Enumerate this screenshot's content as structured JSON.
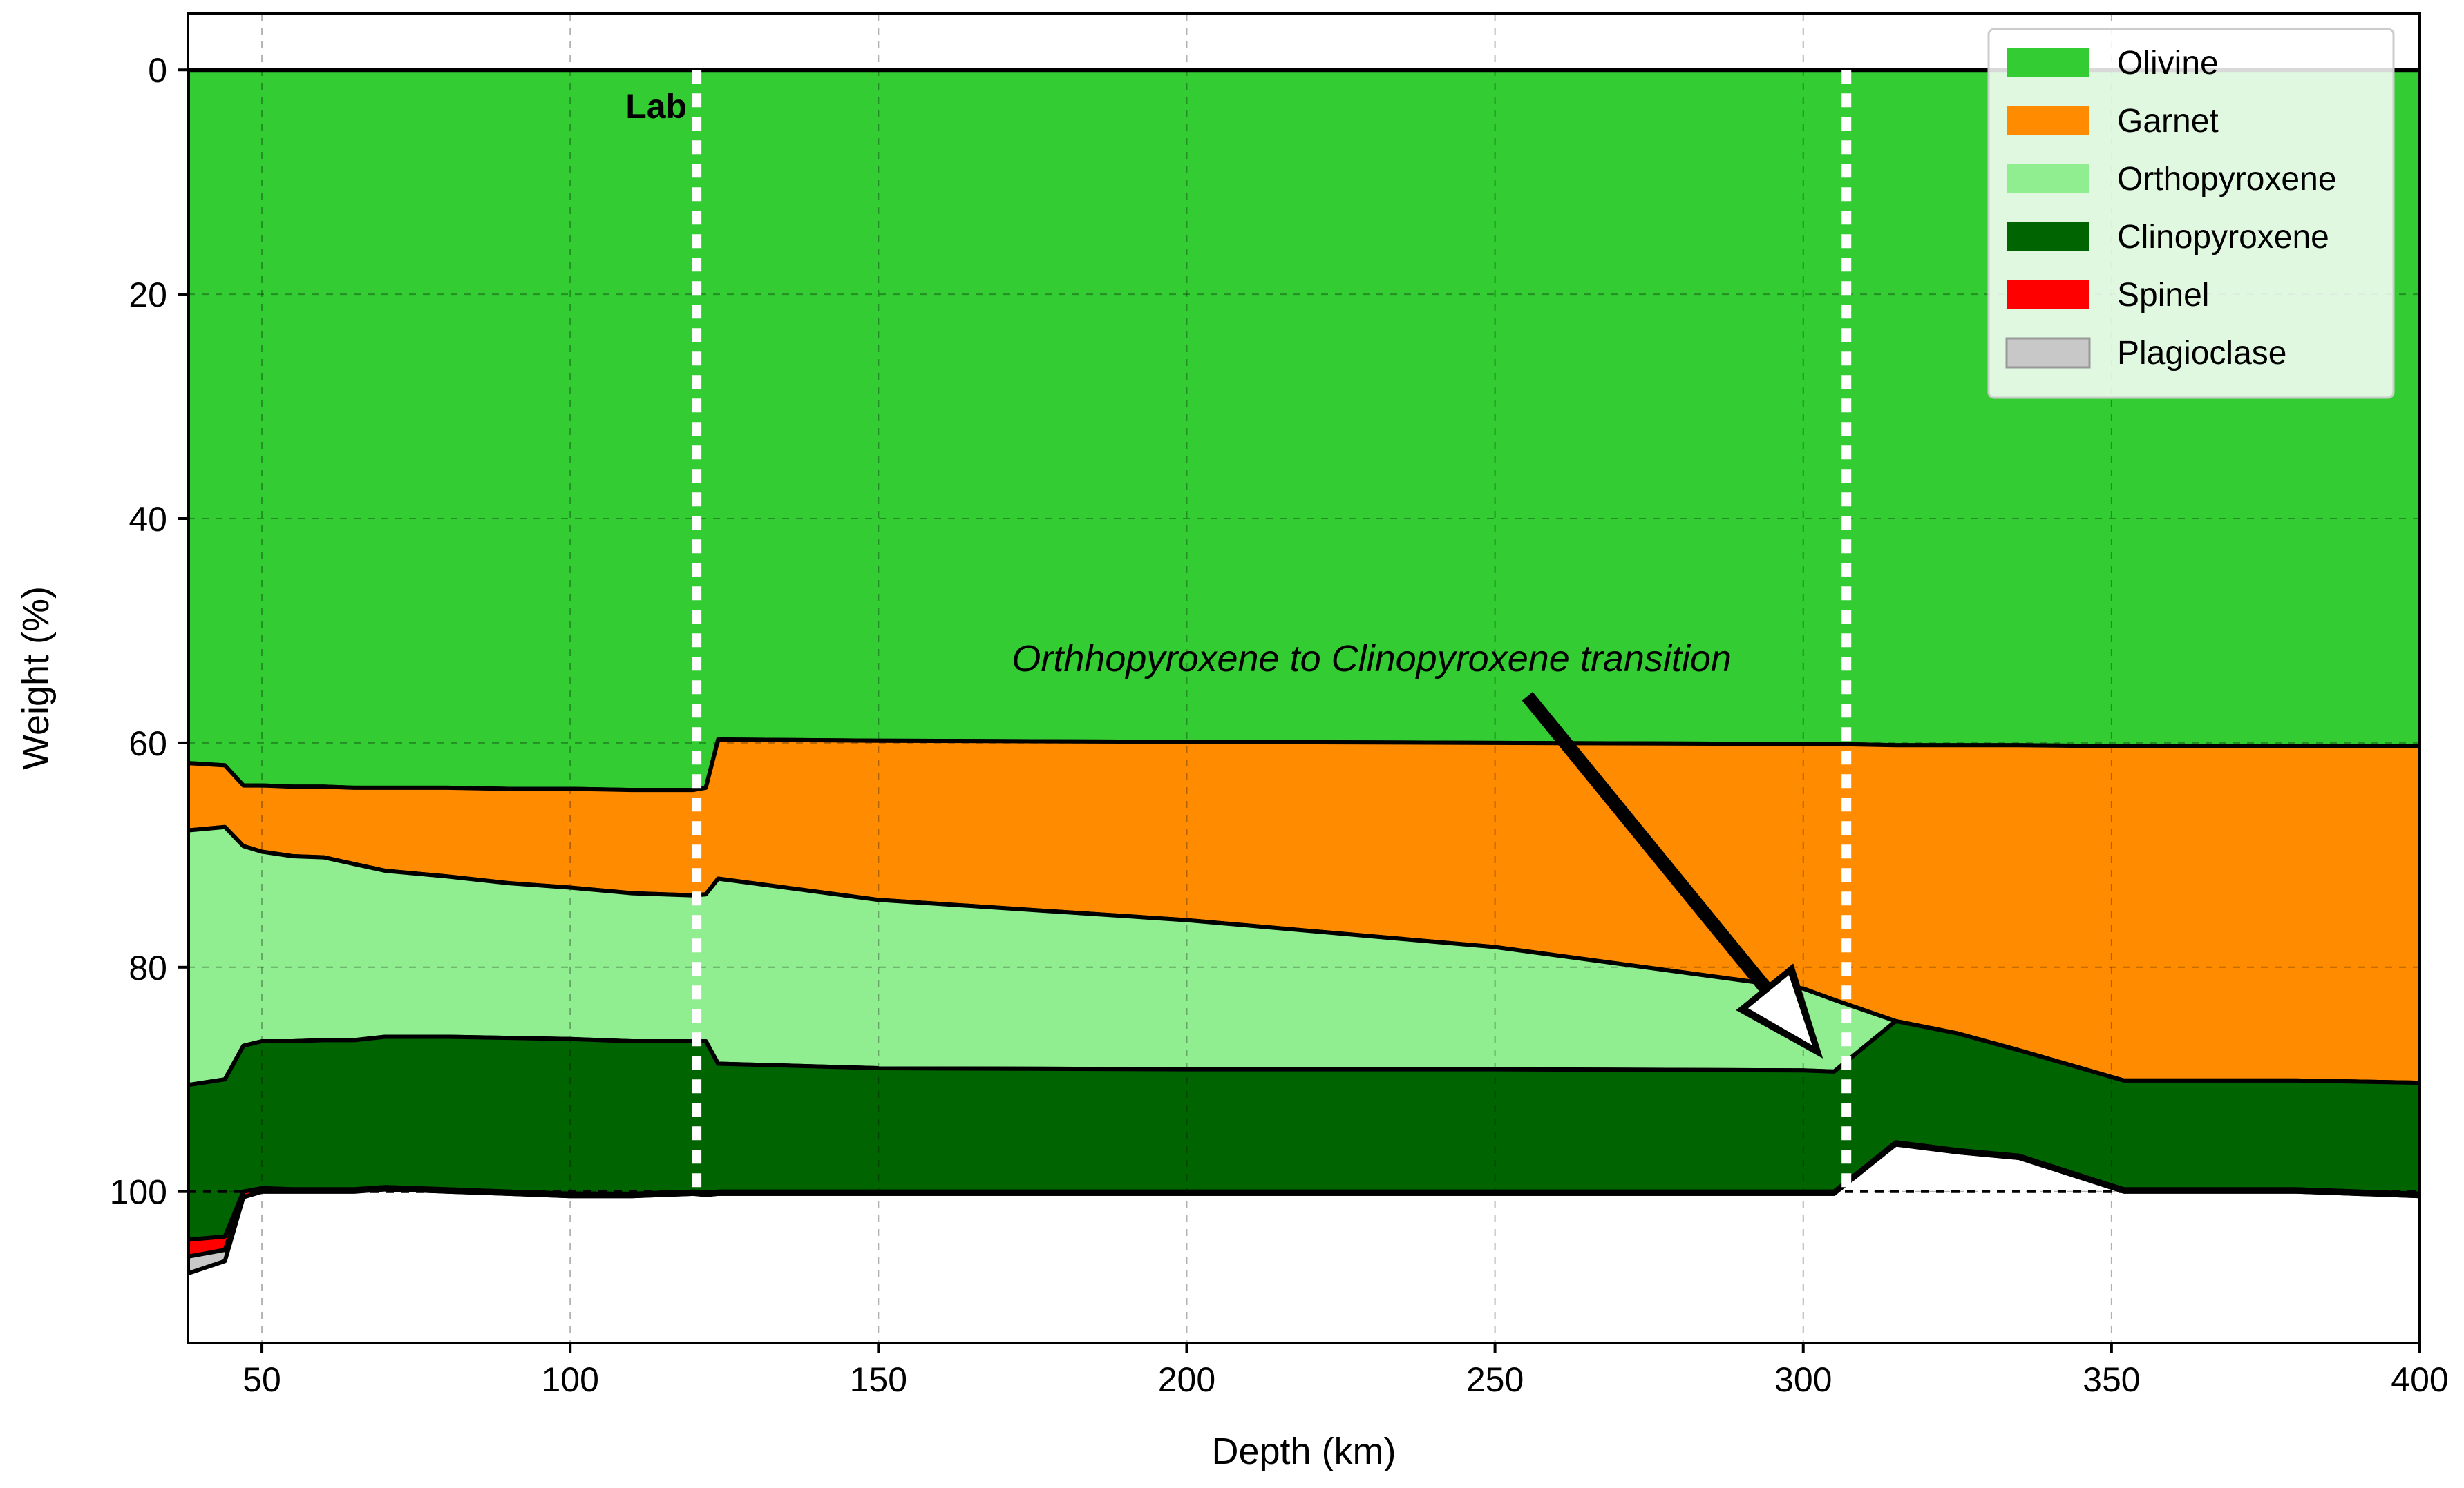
{
  "chart_data": {
    "type": "area",
    "xlabel": "Depth (km)",
    "ylabel": "Weight (%)",
    "xlim": [
      38,
      400
    ],
    "ylim": [
      113.5,
      -5
    ],
    "y_axis_inverted": true,
    "xticks": [
      50,
      100,
      150,
      200,
      250,
      300,
      350,
      400
    ],
    "yticks": [
      0,
      20,
      40,
      60,
      80,
      100
    ],
    "grid": true,
    "legend_position": "top-right",
    "x": [
      38,
      44,
      47,
      50,
      55,
      60,
      65,
      70,
      80,
      90,
      100,
      110,
      120,
      122,
      124,
      150,
      200,
      250,
      300,
      305,
      315,
      325,
      335,
      352,
      380,
      400
    ],
    "series": [
      {
        "name": "Olivine",
        "color": "#33cc33",
        "values": [
          61.8,
          62.0,
          63.8,
          63.8,
          63.9,
          63.9,
          64.0,
          64.0,
          64.0,
          64.1,
          64.1,
          64.2,
          64.2,
          64.0,
          59.7,
          59.8,
          59.9,
          60.0,
          60.1,
          60.1,
          60.2,
          60.2,
          60.2,
          60.3,
          60.3,
          60.3
        ]
      },
      {
        "name": "Garnet",
        "color": "#ff8c00",
        "values": [
          6.0,
          5.5,
          5.4,
          5.9,
          6.2,
          6.3,
          6.8,
          7.4,
          7.9,
          8.4,
          8.8,
          9.2,
          9.4,
          9.5,
          12.4,
          14.2,
          15.9,
          18.2,
          21.8,
          22.8,
          24.6,
          25.7,
          27.2,
          29.8,
          29.8,
          30.0
        ]
      },
      {
        "name": "Orthopyroxene",
        "color": "#90ee90",
        "values": [
          22.7,
          22.5,
          17.8,
          16.9,
          16.5,
          16.3,
          15.7,
          14.8,
          14.3,
          13.8,
          13.5,
          13.2,
          13.0,
          13.1,
          16.5,
          15.0,
          13.3,
          10.9,
          7.3,
          6.4,
          0.0,
          0.0,
          0.0,
          0.0,
          0.0,
          0.0
        ]
      },
      {
        "name": "Clinopyroxene",
        "color": "#006400",
        "values": [
          13.8,
          14.0,
          13.0,
          13.1,
          13.2,
          13.3,
          13.3,
          13.4,
          13.6,
          13.7,
          13.8,
          13.6,
          13.4,
          13.5,
          11.4,
          11.0,
          10.9,
          10.9,
          10.8,
          10.7,
          10.8,
          10.4,
          9.4,
          9.7,
          9.7,
          9.9
        ]
      },
      {
        "name": "Spinel",
        "color": "#ff0000",
        "values": [
          1.5,
          1.2,
          0.5,
          0.3,
          0.2,
          0.2,
          0.2,
          0.2,
          0.2,
          0.2,
          0.2,
          0.2,
          0.2,
          0.2,
          0.2,
          0.2,
          0.2,
          0.2,
          0.2,
          0.2,
          0.2,
          0.2,
          0.2,
          0.2,
          0.2,
          0.2
        ]
      },
      {
        "name": "Plagioclase",
        "color": "#c8c8c8",
        "values": [
          1.5,
          1.0,
          0.0,
          0.0,
          0.0,
          0.0,
          0.0,
          0.0,
          0.0,
          0.0,
          0.0,
          0.0,
          0.0,
          0.0,
          0.0,
          0.0,
          0.0,
          0.0,
          0.0,
          0.0,
          0.0,
          0.0,
          0.0,
          0.0,
          0.0,
          0.0
        ]
      }
    ],
    "reference_lines": [
      {
        "type": "vertical-dotted",
        "x": 120.5,
        "color": "#ffffff",
        "label": "Lab"
      },
      {
        "type": "vertical-dotted",
        "x": 307,
        "color": "#ffffff"
      },
      {
        "type": "horizontal-dashed",
        "y": 100,
        "color": "#000000"
      }
    ],
    "annotations": [
      {
        "text": "Orthhopyroxene to Clinopyroxene transition",
        "text_x": 230,
        "text_y": 52.5,
        "arrow_to_x": 303,
        "arrow_to_y": 88
      }
    ]
  }
}
